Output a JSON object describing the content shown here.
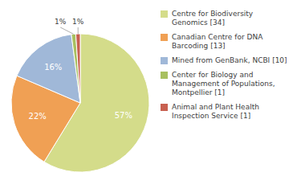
{
  "chart_data": {
    "type": "pie",
    "categories": [
      "Centre for Biodiversity\nGenomics [34]",
      "Canadian Centre for DNA\nBarcoding [13]",
      "Mined from GenBank, NCBI [10]",
      "Center for Biology and\nManagement of Populations,\nMontpellier [1]",
      "Animal and Plant Health\nInspection Service [1]"
    ],
    "values": [
      57,
      22,
      16,
      1,
      1
    ],
    "value_labels": [
      "57%",
      "22%",
      "16%",
      "1%",
      "1%"
    ],
    "colors": [
      "#d4dc8a",
      "#f0a054",
      "#a0b8d8",
      "#a8c060",
      "#c86050"
    ],
    "data_labels": true,
    "legend": "right"
  }
}
